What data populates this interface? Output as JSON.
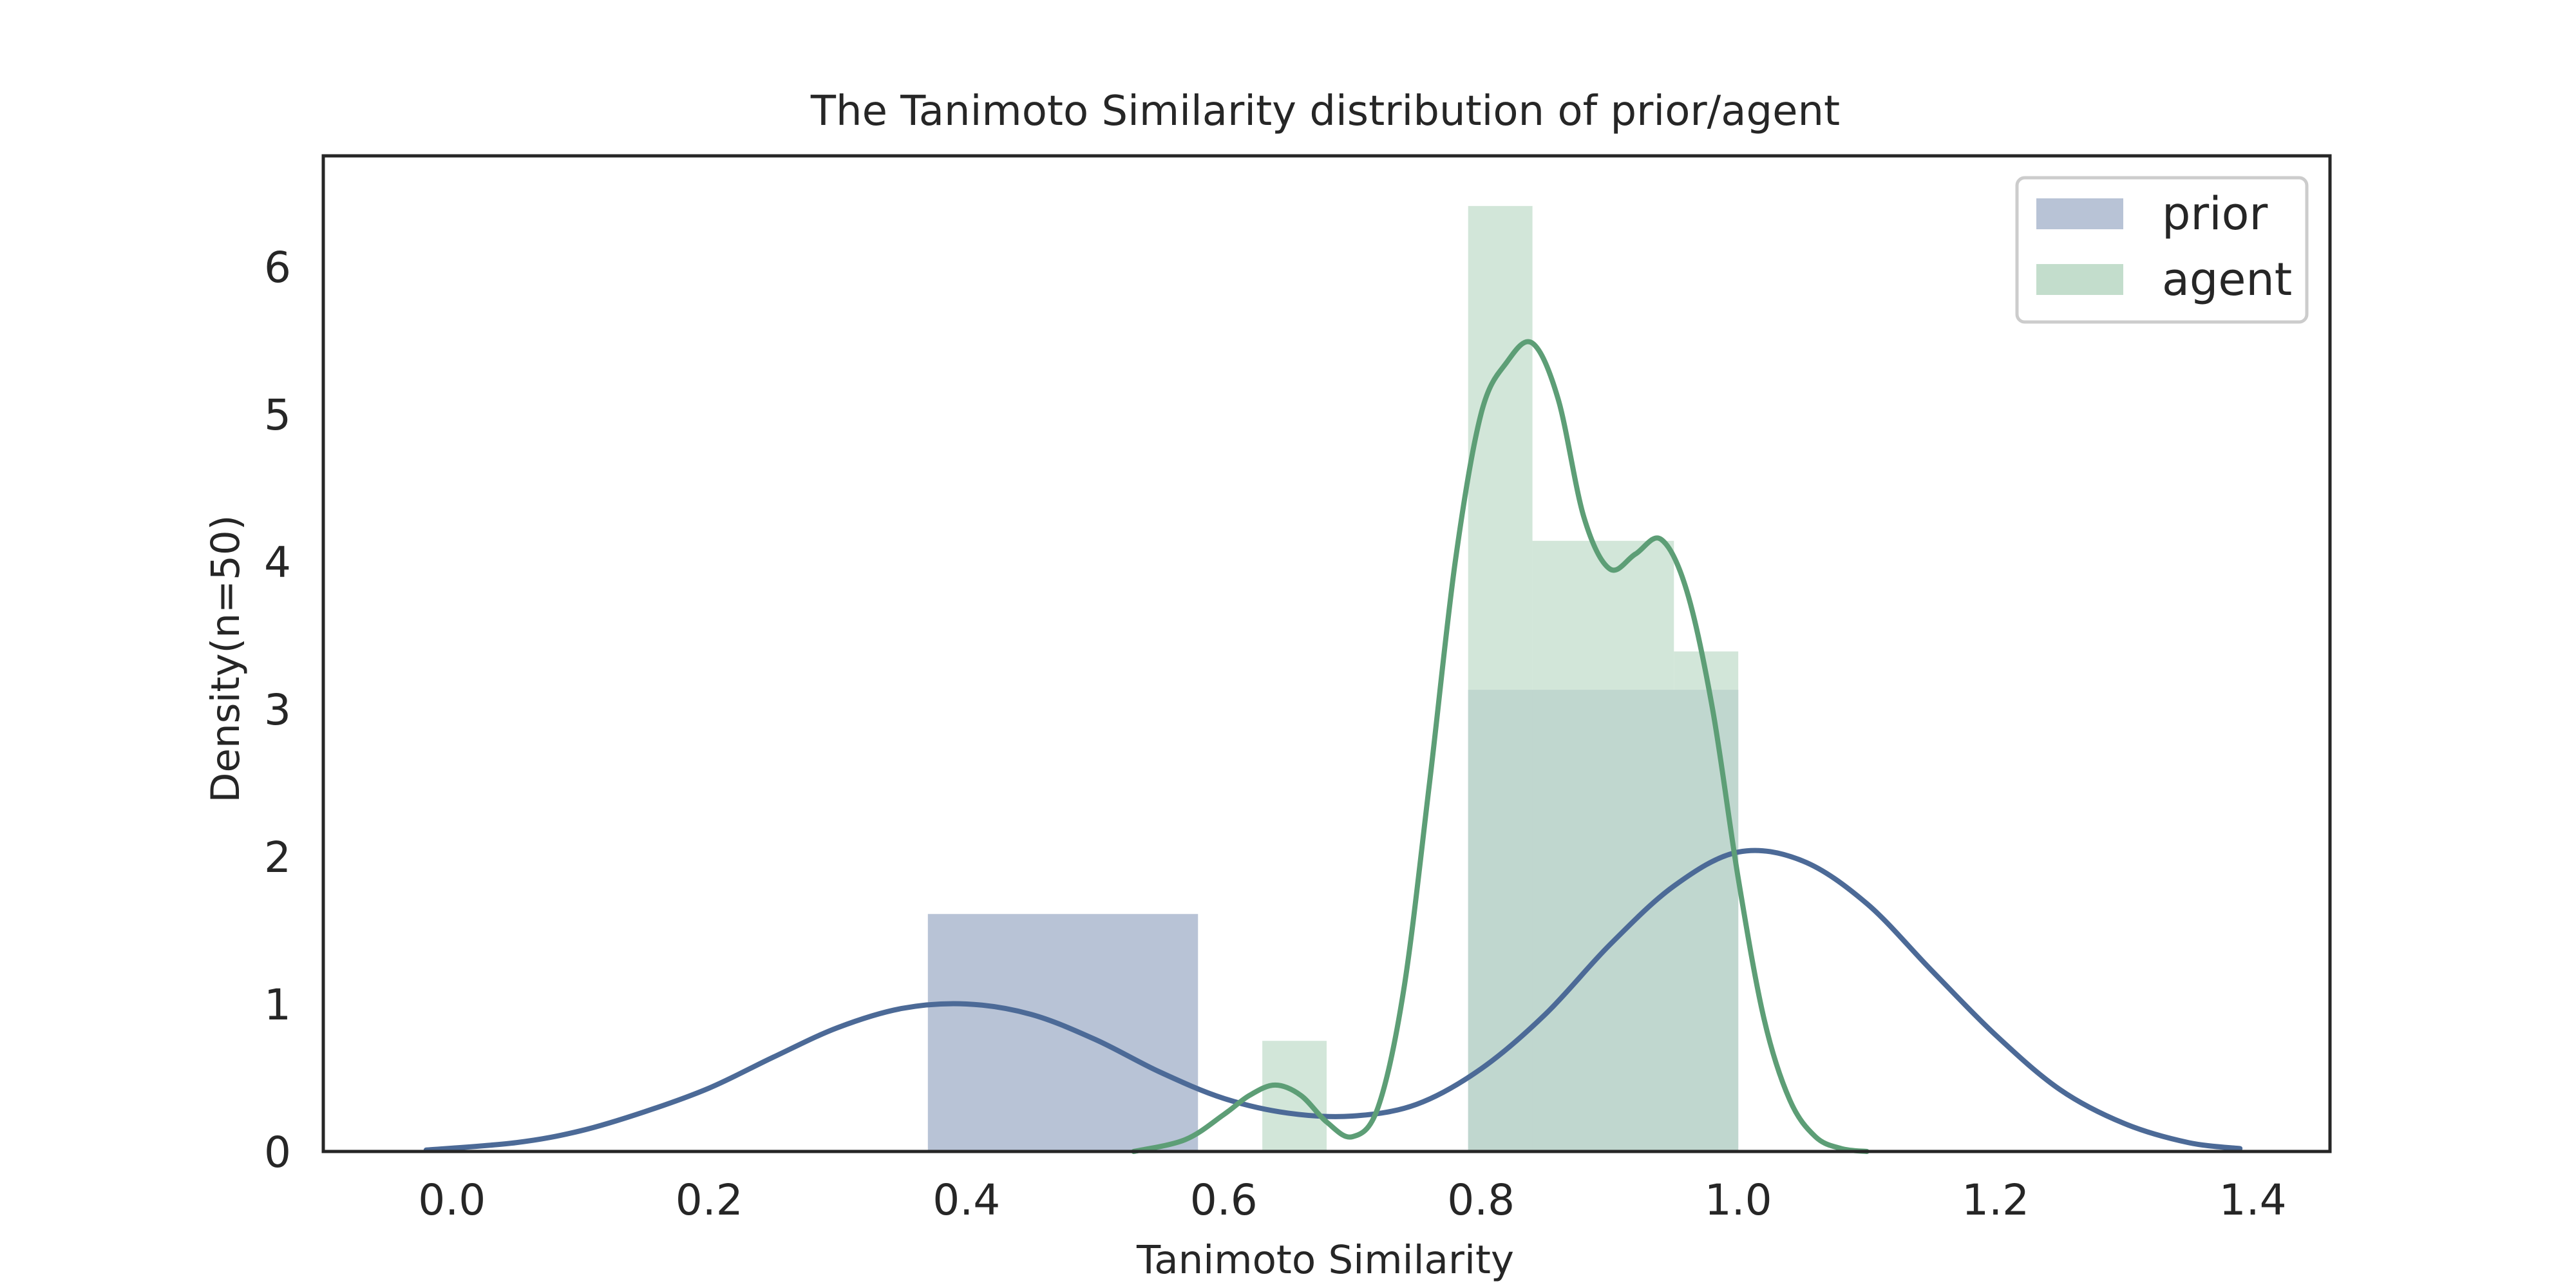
{
  "chart_data": {
    "type": "histogram",
    "title": "The Tanimoto Similarity distribution of prior/agent",
    "xlabel": "Tanimoto Similarity",
    "ylabel": "Density(n=50)",
    "xlim": [
      -0.1,
      1.46
    ],
    "ylim": [
      0,
      6.75
    ],
    "xticks": [
      "0.0",
      "0.2",
      "0.4",
      "0.6",
      "0.8",
      "1.0",
      "1.2",
      "1.4"
    ],
    "yticks": [
      "0",
      "1",
      "2",
      "3",
      "4",
      "5",
      "6"
    ],
    "grid": false,
    "legend_position": "top-right",
    "series": [
      {
        "name": "prior",
        "color": "#4c6a97",
        "bar_color": "#b8c3d6",
        "bars": [
          {
            "x0": 0.37,
            "x1": 0.58,
            "density": 1.61
          },
          {
            "x0": 0.79,
            "x1": 1.0,
            "density": 3.13
          }
        ],
        "kde": {
          "x": [
            -0.02,
            0.05,
            0.1,
            0.15,
            0.2,
            0.25,
            0.3,
            0.35,
            0.4,
            0.45,
            0.5,
            0.55,
            0.6,
            0.65,
            0.7,
            0.75,
            0.8,
            0.85,
            0.9,
            0.95,
            1.0,
            1.05,
            1.1,
            1.15,
            1.2,
            1.25,
            1.3,
            1.35,
            1.39
          ],
          "y": [
            0.01,
            0.06,
            0.14,
            0.27,
            0.43,
            0.64,
            0.84,
            0.97,
            1.0,
            0.93,
            0.76,
            0.54,
            0.36,
            0.26,
            0.24,
            0.32,
            0.56,
            0.93,
            1.4,
            1.8,
            2.03,
            1.97,
            1.68,
            1.23,
            0.79,
            0.42,
            0.19,
            0.06,
            0.02
          ]
        }
      },
      {
        "name": "agent",
        "color": "#5d9e76",
        "bar_color": "#c3ddcc",
        "bars": [
          {
            "x0": 0.63,
            "x1": 0.68,
            "density": 0.75
          },
          {
            "x0": 0.79,
            "x1": 0.84,
            "density": 6.41
          },
          {
            "x0": 0.84,
            "x1": 0.95,
            "density": 4.14
          },
          {
            "x0": 0.95,
            "x1": 1.0,
            "density": 3.39
          }
        ],
        "kde": {
          "x": [
            0.53,
            0.57,
            0.6,
            0.62,
            0.64,
            0.66,
            0.68,
            0.7,
            0.72,
            0.74,
            0.76,
            0.78,
            0.8,
            0.82,
            0.84,
            0.86,
            0.88,
            0.9,
            0.92,
            0.94,
            0.96,
            0.98,
            1.0,
            1.02,
            1.04,
            1.06,
            1.08,
            1.1
          ],
          "y": [
            0.0,
            0.08,
            0.25,
            0.38,
            0.45,
            0.38,
            0.2,
            0.1,
            0.3,
            1.1,
            2.5,
            4.0,
            5.0,
            5.35,
            5.48,
            5.1,
            4.3,
            3.95,
            4.05,
            4.15,
            3.8,
            3.0,
            1.85,
            0.9,
            0.35,
            0.1,
            0.02,
            0.0
          ]
        }
      }
    ]
  }
}
